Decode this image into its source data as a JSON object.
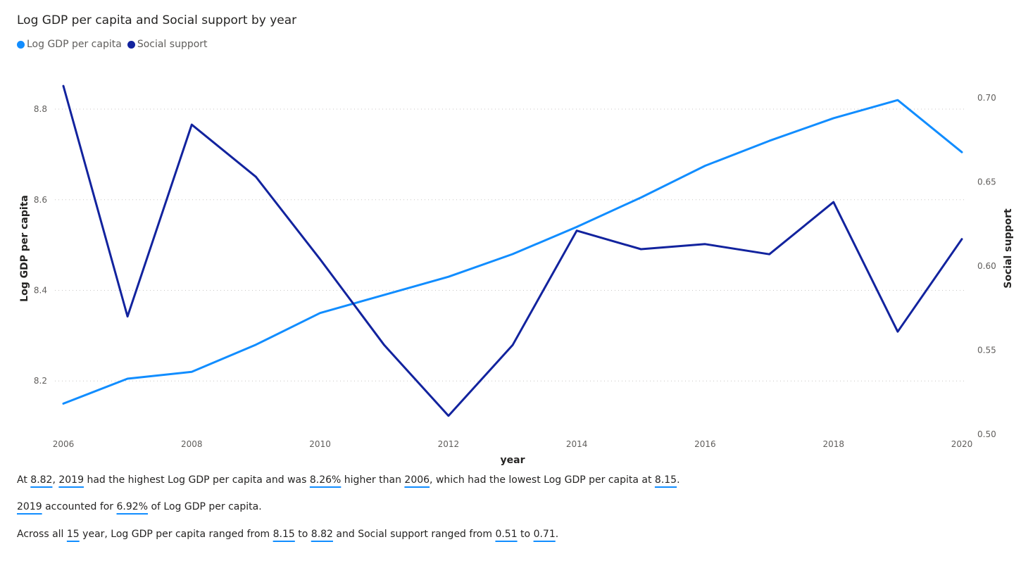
{
  "title": "Log GDP per capita and Social support by year",
  "legend": [
    {
      "label": "Log GDP per capita",
      "color": "#118dff"
    },
    {
      "label": "Social support",
      "color": "#12239e"
    }
  ],
  "chart_data": {
    "type": "line",
    "title": "Log GDP per capita and Social support by year",
    "xlabel": "year",
    "ylabel_left": "Log GDP per capita",
    "ylabel_right": "Social support",
    "x": [
      2006,
      2007,
      2008,
      2009,
      2010,
      2011,
      2012,
      2013,
      2014,
      2015,
      2016,
      2017,
      2018,
      2019,
      2020
    ],
    "x_ticks": [
      "2006",
      "2008",
      "2010",
      "2012",
      "2014",
      "2016",
      "2018",
      "2020"
    ],
    "y_left_ticks": [
      "8.2",
      "8.4",
      "8.6",
      "8.8"
    ],
    "y_right_ticks": [
      "0.50",
      "0.55",
      "0.60",
      "0.65",
      "0.70"
    ],
    "y_left_range": [
      8.09,
      8.87
    ],
    "y_right_range": [
      0.5,
      0.72
    ],
    "grid": true,
    "legend_position": "top-left",
    "series": [
      {
        "name": "Log GDP per capita",
        "axis": "left",
        "color": "#118dff",
        "values": [
          8.15,
          8.205,
          8.22,
          8.28,
          8.35,
          8.39,
          8.43,
          8.48,
          8.54,
          8.605,
          8.675,
          8.73,
          8.78,
          8.82,
          8.705
        ]
      },
      {
        "name": "Social support",
        "axis": "right",
        "color": "#12239e",
        "values": [
          0.707,
          0.57,
          0.684,
          0.653,
          0.604,
          0.553,
          0.511,
          0.553,
          0.621,
          0.61,
          0.613,
          0.607,
          0.638,
          0.561,
          0.616
        ]
      }
    ]
  },
  "narrative": [
    [
      {
        "t": "At "
      },
      {
        "t": "8.82",
        "hl": true
      },
      {
        "t": ", "
      },
      {
        "t": "2019",
        "hl": true
      },
      {
        "t": " had the highest Log GDP per capita and was "
      },
      {
        "t": "8.26%",
        "hl": true
      },
      {
        "t": " higher than "
      },
      {
        "t": "2006",
        "hl": true
      },
      {
        "t": ", which had the lowest Log GDP per capita at "
      },
      {
        "t": "8.15",
        "hl": true
      },
      {
        "t": "."
      }
    ],
    [
      {
        "t": "2019",
        "hl": true
      },
      {
        "t": " accounted for "
      },
      {
        "t": "6.92%",
        "hl": true
      },
      {
        "t": " of Log GDP per capita."
      }
    ],
    [
      {
        "t": "Across all "
      },
      {
        "t": "15",
        "hl": true
      },
      {
        "t": " year, Log GDP per capita ranged from "
      },
      {
        "t": "8.15",
        "hl": true
      },
      {
        "t": " to "
      },
      {
        "t": "8.82",
        "hl": true
      },
      {
        "t": " and Social support ranged from "
      },
      {
        "t": "0.51",
        "hl": true
      },
      {
        "t": " to "
      },
      {
        "t": "0.71",
        "hl": true
      },
      {
        "t": "."
      }
    ]
  ]
}
